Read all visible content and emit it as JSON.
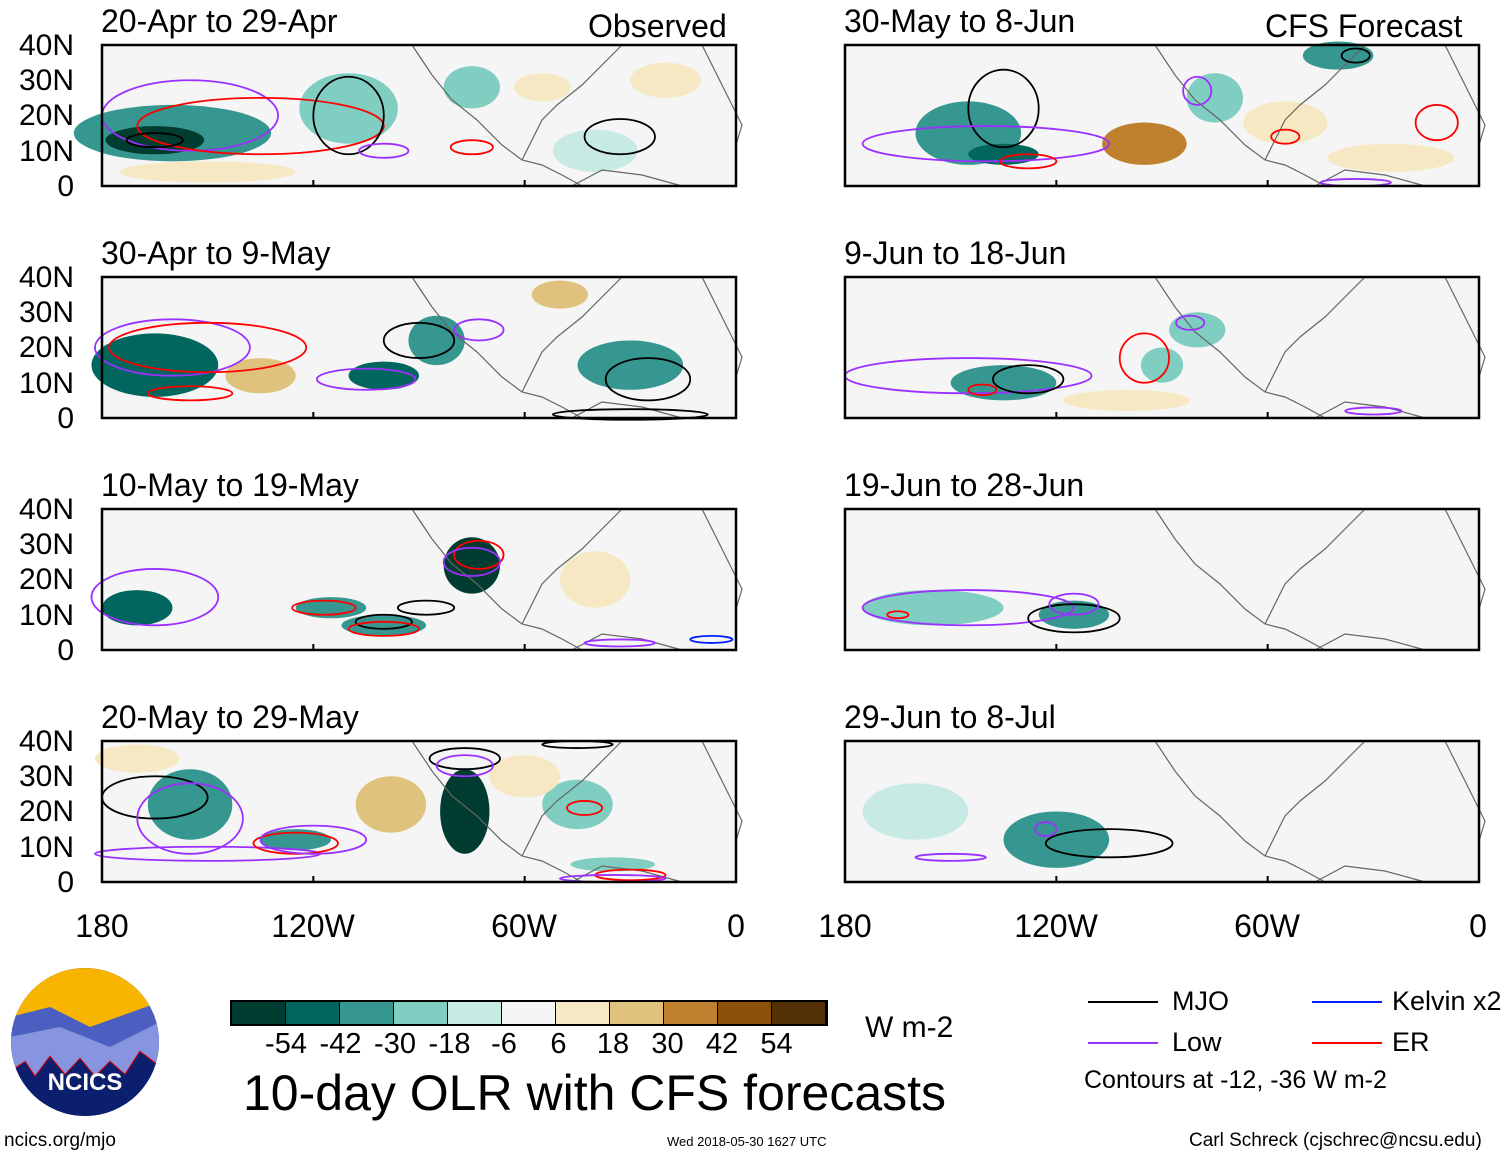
{
  "header": {
    "observed_label": "Observed",
    "forecast_label": "CFS Forecast"
  },
  "latitude_labels": [
    "40N",
    "30N",
    "20N",
    "10N",
    "0"
  ],
  "longitude_labels": [
    "180",
    "120W",
    "60W",
    "0"
  ],
  "panels": [
    {
      "title": "20-Apr to 29-Apr",
      "col": 0,
      "row": 0,
      "anomalies": [
        {
          "lon": -160,
          "lat": 15,
          "rx": 28,
          "ry": 8,
          "v": -30
        },
        {
          "lon": -165,
          "lat": 13,
          "rx": 14,
          "ry": 4,
          "v": -54
        },
        {
          "lon": -110,
          "lat": 22,
          "rx": 14,
          "ry": 10,
          "v": -18
        },
        {
          "lon": -75,
          "lat": 28,
          "rx": 8,
          "ry": 6,
          "v": -18
        },
        {
          "lon": -55,
          "lat": 28,
          "rx": 8,
          "ry": 4,
          "v": 18
        },
        {
          "lon": -20,
          "lat": 30,
          "rx": 10,
          "ry": 5,
          "v": 18
        },
        {
          "lon": -150,
          "lat": 4,
          "rx": 25,
          "ry": 3,
          "v": 18
        },
        {
          "lon": -40,
          "lat": 10,
          "rx": 12,
          "ry": 6,
          "v": -6
        }
      ],
      "contours": [
        {
          "type": "Low",
          "lon": -155,
          "lat": 20,
          "rx": 25,
          "ry": 10
        },
        {
          "type": "ER",
          "lon": -135,
          "lat": 17,
          "rx": 35,
          "ry": 8
        },
        {
          "type": "MJO",
          "lon": -165,
          "lat": 13,
          "rx": 8,
          "ry": 2
        },
        {
          "type": "MJO",
          "lon": -110,
          "lat": 20,
          "rx": 10,
          "ry": 11
        },
        {
          "type": "MJO",
          "lon": -33,
          "lat": 14,
          "rx": 10,
          "ry": 5
        },
        {
          "type": "Low",
          "lon": -100,
          "lat": 10,
          "rx": 7,
          "ry": 2
        },
        {
          "type": "ER",
          "lon": -75,
          "lat": 11,
          "rx": 6,
          "ry": 2
        }
      ]
    },
    {
      "title": "30-Apr to 9-May",
      "col": 0,
      "row": 1,
      "anomalies": [
        {
          "lon": -165,
          "lat": 15,
          "rx": 18,
          "ry": 9,
          "v": -42
        },
        {
          "lon": -100,
          "lat": 12,
          "rx": 10,
          "ry": 4,
          "v": -42
        },
        {
          "lon": -85,
          "lat": 22,
          "rx": 8,
          "ry": 7,
          "v": -30
        },
        {
          "lon": -30,
          "lat": 15,
          "rx": 15,
          "ry": 7,
          "v": -30
        },
        {
          "lon": -135,
          "lat": 12,
          "rx": 10,
          "ry": 5,
          "v": 30
        },
        {
          "lon": -50,
          "lat": 35,
          "rx": 8,
          "ry": 4,
          "v": 30
        },
        {
          "lon": -60,
          "lat": 20,
          "rx": 14,
          "ry": 8,
          "v": 6
        }
      ],
      "contours": [
        {
          "type": "Low",
          "lon": -160,
          "lat": 20,
          "rx": 22,
          "ry": 8
        },
        {
          "type": "ER",
          "lon": -150,
          "lat": 20,
          "rx": 28,
          "ry": 7
        },
        {
          "type": "ER",
          "lon": -155,
          "lat": 7,
          "rx": 12,
          "ry": 2
        },
        {
          "type": "MJO",
          "lon": -90,
          "lat": 22,
          "rx": 10,
          "ry": 5
        },
        {
          "type": "Low",
          "lon": -105,
          "lat": 11,
          "rx": 14,
          "ry": 3
        },
        {
          "type": "Low",
          "lon": -73,
          "lat": 25,
          "rx": 7,
          "ry": 3
        },
        {
          "type": "MJO",
          "lon": -25,
          "lat": 11,
          "rx": 12,
          "ry": 6
        },
        {
          "type": "MJO",
          "lon": -30,
          "lat": 1,
          "rx": 22,
          "ry": 1.5
        }
      ]
    },
    {
      "title": "10-May to 19-May",
      "col": 0,
      "row": 2,
      "anomalies": [
        {
          "lon": -170,
          "lat": 12,
          "rx": 10,
          "ry": 5,
          "v": -42
        },
        {
          "lon": -115,
          "lat": 12,
          "rx": 10,
          "ry": 3,
          "v": -30
        },
        {
          "lon": -75,
          "lat": 24,
          "rx": 8,
          "ry": 8,
          "v": -54
        },
        {
          "lon": -40,
          "lat": 20,
          "rx": 10,
          "ry": 8,
          "v": 18
        },
        {
          "lon": -100,
          "lat": 7,
          "rx": 12,
          "ry": 3,
          "v": -30
        },
        {
          "lon": -135,
          "lat": 25,
          "rx": 12,
          "ry": 5,
          "v": 6
        }
      ],
      "contours": [
        {
          "type": "Low",
          "lon": -165,
          "lat": 15,
          "rx": 18,
          "ry": 8
        },
        {
          "type": "ER",
          "lon": -117,
          "lat": 12,
          "rx": 9,
          "ry": 2
        },
        {
          "type": "MJO",
          "lon": -100,
          "lat": 8,
          "rx": 8,
          "ry": 2
        },
        {
          "type": "MJO",
          "lon": -88,
          "lat": 12,
          "rx": 8,
          "ry": 2
        },
        {
          "type": "ER",
          "lon": -100,
          "lat": 6,
          "rx": 10,
          "ry": 2
        },
        {
          "type": "ER",
          "lon": -73,
          "lat": 27,
          "rx": 7,
          "ry": 4
        },
        {
          "type": "Low",
          "lon": -75,
          "lat": 25,
          "rx": 8,
          "ry": 4
        },
        {
          "type": "Kelvin x2",
          "lon": -7,
          "lat": 3,
          "rx": 6,
          "ry": 1
        },
        {
          "type": "Low",
          "lon": -33,
          "lat": 2,
          "rx": 10,
          "ry": 1
        }
      ]
    },
    {
      "title": "20-May to 29-May",
      "col": 0,
      "row": 3,
      "anomalies": [
        {
          "lon": -155,
          "lat": 22,
          "rx": 12,
          "ry": 10,
          "v": -30
        },
        {
          "lon": -125,
          "lat": 12,
          "rx": 10,
          "ry": 3,
          "v": -30
        },
        {
          "lon": -77,
          "lat": 20,
          "rx": 7,
          "ry": 12,
          "v": -54
        },
        {
          "lon": -45,
          "lat": 22,
          "rx": 10,
          "ry": 7,
          "v": -18
        },
        {
          "lon": -98,
          "lat": 22,
          "rx": 10,
          "ry": 8,
          "v": 30
        },
        {
          "lon": -170,
          "lat": 35,
          "rx": 12,
          "ry": 4,
          "v": 18
        },
        {
          "lon": -35,
          "lat": 5,
          "rx": 12,
          "ry": 2,
          "v": -18
        },
        {
          "lon": -60,
          "lat": 30,
          "rx": 10,
          "ry": 6,
          "v": 18
        }
      ],
      "contours": [
        {
          "type": "MJO",
          "lon": -165,
          "lat": 24,
          "rx": 15,
          "ry": 6
        },
        {
          "type": "Low",
          "lon": -155,
          "lat": 18,
          "rx": 15,
          "ry": 10
        },
        {
          "type": "Low",
          "lon": -150,
          "lat": 8,
          "rx": 32,
          "ry": 2
        },
        {
          "type": "ER",
          "lon": -125,
          "lat": 11,
          "rx": 12,
          "ry": 3
        },
        {
          "type": "Low",
          "lon": -120,
          "lat": 12,
          "rx": 15,
          "ry": 4
        },
        {
          "type": "MJO",
          "lon": -77,
          "lat": 35,
          "rx": 10,
          "ry": 3
        },
        {
          "type": "Low",
          "lon": -77,
          "lat": 33,
          "rx": 8,
          "ry": 3
        },
        {
          "type": "ER",
          "lon": -43,
          "lat": 21,
          "rx": 5,
          "ry": 2
        },
        {
          "type": "ER",
          "lon": -30,
          "lat": 2,
          "rx": 10,
          "ry": 1.5
        },
        {
          "type": "Low",
          "lon": -35,
          "lat": 1,
          "rx": 15,
          "ry": 1
        },
        {
          "type": "MJO",
          "lon": -45,
          "lat": 39,
          "rx": 10,
          "ry": 1
        }
      ]
    },
    {
      "title": "30-May to 8-Jun",
      "col": 1,
      "row": 0,
      "anomalies": [
        {
          "lon": -145,
          "lat": 15,
          "rx": 15,
          "ry": 9,
          "v": -30
        },
        {
          "lon": -135,
          "lat": 9,
          "rx": 10,
          "ry": 3,
          "v": -42
        },
        {
          "lon": -95,
          "lat": 12,
          "rx": 12,
          "ry": 6,
          "v": 42
        },
        {
          "lon": -55,
          "lat": 18,
          "rx": 12,
          "ry": 6,
          "v": 18
        },
        {
          "lon": -25,
          "lat": 8,
          "rx": 18,
          "ry": 4,
          "v": 18
        },
        {
          "lon": -40,
          "lat": 37,
          "rx": 10,
          "ry": 4,
          "v": -30
        },
        {
          "lon": -75,
          "lat": 25,
          "rx": 8,
          "ry": 7,
          "v": -18
        }
      ],
      "contours": [
        {
          "type": "MJO",
          "lon": -135,
          "lat": 22,
          "rx": 10,
          "ry": 11
        },
        {
          "type": "MJO",
          "lon": -35,
          "lat": 37,
          "rx": 4,
          "ry": 2
        },
        {
          "type": "Low",
          "lon": -140,
          "lat": 12,
          "rx": 35,
          "ry": 5
        },
        {
          "type": "ER",
          "lon": -128,
          "lat": 7,
          "rx": 8,
          "ry": 2
        },
        {
          "type": "Low",
          "lon": -80,
          "lat": 27,
          "rx": 4,
          "ry": 4
        },
        {
          "type": "ER",
          "lon": -55,
          "lat": 14,
          "rx": 4,
          "ry": 2
        },
        {
          "type": "ER",
          "lon": -12,
          "lat": 18,
          "rx": 6,
          "ry": 5
        },
        {
          "type": "Low",
          "lon": -35,
          "lat": 1,
          "rx": 10,
          "ry": 1
        }
      ]
    },
    {
      "title": "9-Jun to 18-Jun",
      "col": 1,
      "row": 1,
      "anomalies": [
        {
          "lon": -135,
          "lat": 10,
          "rx": 15,
          "ry": 5,
          "v": -30
        },
        {
          "lon": -80,
          "lat": 25,
          "rx": 8,
          "ry": 5,
          "v": -18
        },
        {
          "lon": -90,
          "lat": 15,
          "rx": 6,
          "ry": 5,
          "v": -18
        },
        {
          "lon": -50,
          "lat": 25,
          "rx": 18,
          "ry": 9,
          "v": 6
        },
        {
          "lon": -100,
          "lat": 5,
          "rx": 18,
          "ry": 3,
          "v": 18
        }
      ],
      "contours": [
        {
          "type": "Low",
          "lon": -145,
          "lat": 12,
          "rx": 35,
          "ry": 5
        },
        {
          "type": "MJO",
          "lon": -128,
          "lat": 11,
          "rx": 10,
          "ry": 4
        },
        {
          "type": "ER",
          "lon": -141,
          "lat": 8,
          "rx": 4,
          "ry": 1.5
        },
        {
          "type": "ER",
          "lon": -95,
          "lat": 17,
          "rx": 7,
          "ry": 7
        },
        {
          "type": "Low",
          "lon": -82,
          "lat": 27,
          "rx": 4,
          "ry": 2
        },
        {
          "type": "Low",
          "lon": -30,
          "lat": 2,
          "rx": 8,
          "ry": 1
        }
      ]
    },
    {
      "title": "19-Jun to 28-Jun",
      "col": 1,
      "row": 2,
      "anomalies": [
        {
          "lon": -155,
          "lat": 12,
          "rx": 20,
          "ry": 5,
          "v": -18
        },
        {
          "lon": -115,
          "lat": 10,
          "rx": 10,
          "ry": 4,
          "v": -30
        },
        {
          "lon": -55,
          "lat": 22,
          "rx": 20,
          "ry": 8,
          "v": 6
        },
        {
          "lon": -15,
          "lat": 25,
          "rx": 10,
          "ry": 10,
          "v": 6
        }
      ],
      "contours": [
        {
          "type": "Low",
          "lon": -145,
          "lat": 12,
          "rx": 30,
          "ry": 5
        },
        {
          "type": "ER",
          "lon": -165,
          "lat": 10,
          "rx": 3,
          "ry": 1
        },
        {
          "type": "MJO",
          "lon": -115,
          "lat": 9,
          "rx": 13,
          "ry": 4
        },
        {
          "type": "Low",
          "lon": -115,
          "lat": 13,
          "rx": 7,
          "ry": 3
        }
      ]
    },
    {
      "title": "29-Jun to 8-Jul",
      "col": 1,
      "row": 3,
      "anomalies": [
        {
          "lon": -120,
          "lat": 12,
          "rx": 15,
          "ry": 8,
          "v": -30
        },
        {
          "lon": -55,
          "lat": 25,
          "rx": 20,
          "ry": 8,
          "v": 6
        },
        {
          "lon": -160,
          "lat": 20,
          "rx": 15,
          "ry": 8,
          "v": -6
        }
      ],
      "contours": [
        {
          "type": "MJO",
          "lon": -105,
          "lat": 11,
          "rx": 18,
          "ry": 4
        },
        {
          "type": "Low",
          "lon": -123,
          "lat": 15,
          "rx": 3,
          "ry": 2
        },
        {
          "type": "Low",
          "lon": -150,
          "lat": 7,
          "rx": 10,
          "ry": 1
        }
      ]
    }
  ],
  "colorbar": {
    "levels": [
      -54,
      -42,
      -30,
      -18,
      -6,
      6,
      18,
      30,
      42,
      54
    ],
    "labels": [
      "-54",
      "-42",
      "-30",
      "-18",
      "-6",
      "6",
      "18",
      "30",
      "42",
      "54"
    ],
    "colors": [
      "#003c30",
      "#01665e",
      "#35978f",
      "#80cdc1",
      "#c7eae5",
      "#f5f5f5",
      "#f6e8c3",
      "#dfc27d",
      "#bf812d",
      "#8c510a",
      "#543005"
    ],
    "units": "W m-2"
  },
  "title": "10-day OLR with CFS forecasts",
  "legend": {
    "items": [
      {
        "label": "MJO",
        "color": "#000000"
      },
      {
        "label": "Kelvin x2",
        "color": "#0020ff"
      },
      {
        "label": "Low",
        "color": "#9b30ff"
      },
      {
        "label": "ER",
        "color": "#ff0000"
      }
    ],
    "note": "Contours at -12, -36 W m-2"
  },
  "logo": {
    "text": "NCICS"
  },
  "footer": {
    "url": "ncics.org/mjo",
    "timestamp": "Wed 2018-05-30 1627 UTC",
    "author": "Carl Schreck (cjschrec@ncsu.edu)"
  }
}
